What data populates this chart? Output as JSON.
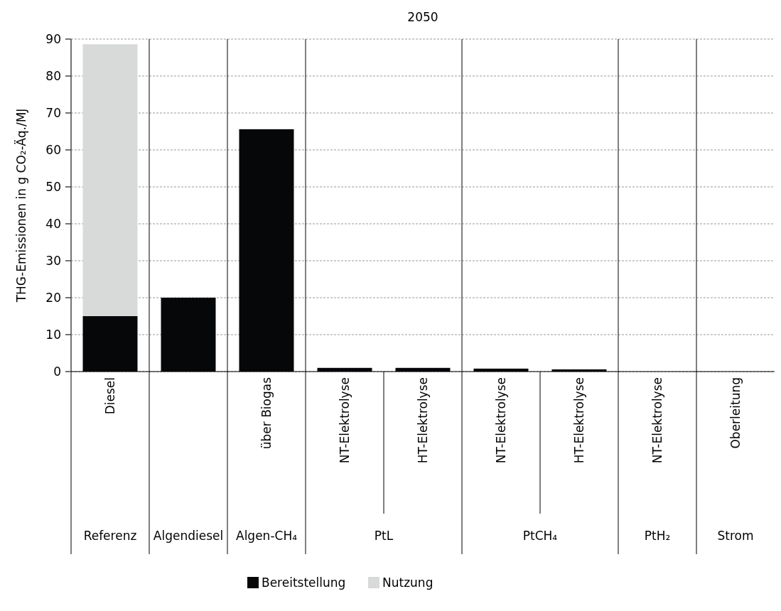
{
  "chart_data": {
    "type": "bar",
    "title": "2050",
    "ylabel": "THG-Emissionen in g CO₂-Äq./MJ",
    "categories": [
      "Diesel",
      null,
      "über Biogas",
      "NT-Elektrolyse",
      "HT-Elektrolyse",
      "NT-Elektrolyse",
      "HT-Elektrolyse",
      "NT-Elektrolyse",
      "Oberleitung"
    ],
    "annotations": [
      "Referenz",
      "Algendiesel",
      "Algen-CH₄",
      "PtL",
      "PtCH₄",
      "PtH₂",
      "Strom"
    ],
    "series": [
      {
        "name": "Bereitstellung",
        "color": "#060709",
        "values": [
          15,
          20,
          65.6,
          1.0,
          1.0,
          0.8,
          0.6,
          null,
          null
        ]
      },
      {
        "name": "Nutzung",
        "color": "#d8d9d9",
        "values": [
          73.6,
          null,
          null,
          null,
          null,
          null,
          null,
          null,
          null
        ]
      }
    ],
    "stacked": true,
    "ylim": [
      0,
      90
    ],
    "yticks": [
      0,
      10,
      20,
      30,
      40,
      50,
      60,
      70,
      80,
      90
    ],
    "grid": "y",
    "legend": "bottom"
  }
}
